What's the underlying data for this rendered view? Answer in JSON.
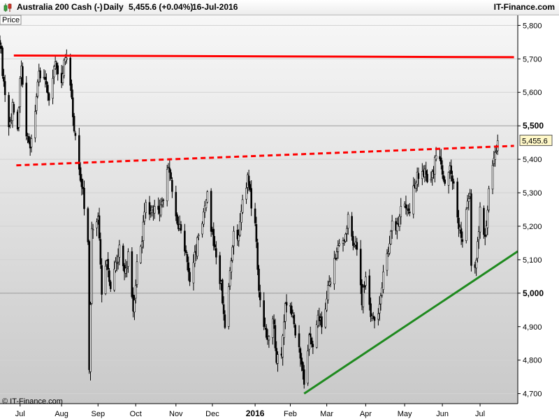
{
  "header": {
    "instrument": "Australia 200 Cash (-)",
    "period": "Daily",
    "price_change": "5,455.6 (+0.04%)",
    "date": "16-Jul-2016",
    "brand": "IT-Finance.com"
  },
  "chart_labels": {
    "price_tag": "Price",
    "last_price": "5,455.6",
    "copyright": "© IT-Finance.com"
  },
  "colors": {
    "up_icon": "#3aa640",
    "down_icon": "#d43a2a",
    "resistance": "#ff0000",
    "support": "#1f8a1f",
    "candles": "#000000",
    "last_price_box": "#fff8c8"
  },
  "chart_data": {
    "type": "candlestick",
    "title": "Australia 200 Cash (-)",
    "xlabel": "",
    "ylabel": "",
    "ylim": [
      4670,
      5830
    ],
    "yticks": [
      5800,
      5700,
      5600,
      5500,
      5400,
      5300,
      5200,
      5100,
      5000,
      4900,
      4800,
      4700
    ],
    "ytick_labels": [
      "5,800",
      "5,700",
      "5,600",
      "5,500",
      "5,400",
      "5,300",
      "5,200",
      "5,100",
      "5,000",
      "4,900",
      "4,800",
      "4,700"
    ],
    "major_ticks": [
      5500,
      5000
    ],
    "x_range": [
      "2015-06-15",
      "2016-07-31"
    ],
    "xticks": [
      {
        "date": "2015-07-01",
        "label": "Jul"
      },
      {
        "date": "2015-08-03",
        "label": "Aug"
      },
      {
        "date": "2015-09-01",
        "label": "Sep"
      },
      {
        "date": "2015-10-01",
        "label": "Oct"
      },
      {
        "date": "2015-11-02",
        "label": "Nov"
      },
      {
        "date": "2015-12-01",
        "label": "Dec"
      },
      {
        "date": "2016-01-04",
        "label": "2016"
      },
      {
        "date": "2016-02-01",
        "label": "Feb"
      },
      {
        "date": "2016-03-01",
        "label": "Mar"
      },
      {
        "date": "2016-04-01",
        "label": "Apr"
      },
      {
        "date": "2016-05-02",
        "label": "May"
      },
      {
        "date": "2016-06-01",
        "label": "Jun"
      },
      {
        "date": "2016-07-01",
        "label": "Jul"
      }
    ],
    "last_close": 5455.6,
    "trendlines": [
      {
        "name": "resistance-high",
        "style": "solid",
        "color": "#ff0000",
        "from": {
          "date": "2015-06-26",
          "value": 5710
        },
        "to": {
          "date": "2016-07-28",
          "value": 5705
        }
      },
      {
        "name": "resistance-neckline",
        "style": "dashed",
        "color": "#ff0000",
        "from": {
          "date": "2015-06-28",
          "value": 5382
        },
        "to": {
          "date": "2016-07-28",
          "value": 5440
        }
      },
      {
        "name": "support-uptrend",
        "style": "solid",
        "color": "#1f8a1f",
        "from": {
          "date": "2016-02-12",
          "value": 4700
        },
        "to": {
          "date": "2016-07-31",
          "value": 5125
        }
      }
    ],
    "price_path": [
      [
        "2015-06-15",
        5760
      ],
      [
        "2015-06-18",
        5620
      ],
      [
        "2015-06-22",
        5480
      ],
      [
        "2015-06-25",
        5560
      ],
      [
        "2015-06-29",
        5500
      ],
      [
        "2015-07-02",
        5690
      ],
      [
        "2015-07-06",
        5460
      ],
      [
        "2015-07-09",
        5420
      ],
      [
        "2015-07-13",
        5560
      ],
      [
        "2015-07-16",
        5660
      ],
      [
        "2015-07-21",
        5640
      ],
      [
        "2015-07-24",
        5560
      ],
      [
        "2015-07-28",
        5690
      ],
      [
        "2015-08-03",
        5640
      ],
      [
        "2015-08-06",
        5710
      ],
      [
        "2015-08-10",
        5620
      ],
      [
        "2015-08-13",
        5480
      ],
      [
        "2015-08-17",
        5380
      ],
      [
        "2015-08-20",
        5300
      ],
      [
        "2015-08-24",
        5150
      ],
      [
        "2015-08-25",
        4780
      ],
      [
        "2015-08-27",
        5180
      ],
      [
        "2015-09-01",
        5230
      ],
      [
        "2015-09-04",
        5000
      ],
      [
        "2015-09-08",
        5100
      ],
      [
        "2015-09-11",
        5020
      ],
      [
        "2015-09-15",
        5090
      ],
      [
        "2015-09-18",
        5140
      ],
      [
        "2015-09-22",
        5050
      ],
      [
        "2015-09-25",
        5110
      ],
      [
        "2015-09-29",
        4930
      ],
      [
        "2015-10-02",
        5080
      ],
      [
        "2015-10-06",
        5170
      ],
      [
        "2015-10-09",
        5260
      ],
      [
        "2015-10-13",
        5230
      ],
      [
        "2015-10-16",
        5270
      ],
      [
        "2015-10-20",
        5240
      ],
      [
        "2015-10-23",
        5290
      ],
      [
        "2015-10-27",
        5390
      ],
      [
        "2015-10-30",
        5300
      ],
      [
        "2015-11-03",
        5200
      ],
      [
        "2015-11-06",
        5190
      ],
      [
        "2015-11-10",
        5110
      ],
      [
        "2015-11-13",
        5040
      ],
      [
        "2015-11-17",
        5110
      ],
      [
        "2015-11-20",
        5180
      ],
      [
        "2015-11-24",
        5230
      ],
      [
        "2015-11-27",
        5290
      ],
      [
        "2015-12-01",
        5170
      ],
      [
        "2015-12-04",
        5110
      ],
      [
        "2015-12-08",
        5020
      ],
      [
        "2015-12-11",
        4910
      ],
      [
        "2015-12-15",
        5050
      ],
      [
        "2015-12-18",
        5170
      ],
      [
        "2015-12-22",
        5160
      ],
      [
        "2015-12-24",
        5260
      ],
      [
        "2015-12-29",
        5340
      ],
      [
        "2016-01-04",
        5200
      ],
      [
        "2016-01-07",
        5020
      ],
      [
        "2016-01-11",
        4900
      ],
      [
        "2016-01-14",
        4870
      ],
      [
        "2016-01-18",
        4940
      ],
      [
        "2016-01-21",
        4800
      ],
      [
        "2016-01-25",
        4830
      ],
      [
        "2016-01-28",
        4960
      ],
      [
        "2016-02-01",
        4980
      ],
      [
        "2016-02-04",
        4900
      ],
      [
        "2016-02-08",
        4850
      ],
      [
        "2016-02-11",
        4760
      ],
      [
        "2016-02-12",
        4720
      ],
      [
        "2016-02-16",
        4870
      ],
      [
        "2016-02-19",
        4840
      ],
      [
        "2016-02-23",
        4950
      ],
      [
        "2016-02-26",
        4900
      ],
      [
        "2016-03-01",
        4990
      ],
      [
        "2016-03-04",
        5050
      ],
      [
        "2016-03-08",
        5110
      ],
      [
        "2016-03-11",
        5160
      ],
      [
        "2016-03-15",
        5150
      ],
      [
        "2016-03-18",
        5220
      ],
      [
        "2016-03-22",
        5150
      ],
      [
        "2016-03-24",
        5170
      ],
      [
        "2016-03-29",
        4980
      ],
      [
        "2016-04-01",
        5050
      ],
      [
        "2016-04-05",
        4920
      ],
      [
        "2016-04-08",
        4910
      ],
      [
        "2016-04-12",
        4960
      ],
      [
        "2016-04-15",
        5070
      ],
      [
        "2016-04-19",
        5120
      ],
      [
        "2016-04-22",
        5220
      ],
      [
        "2016-04-26",
        5200
      ],
      [
        "2016-04-29",
        5260
      ],
      [
        "2016-05-03",
        5270
      ],
      [
        "2016-05-06",
        5240
      ],
      [
        "2016-05-10",
        5330
      ],
      [
        "2016-05-13",
        5360
      ],
      [
        "2016-05-17",
        5370
      ],
      [
        "2016-05-20",
        5340
      ],
      [
        "2016-05-24",
        5350
      ],
      [
        "2016-05-27",
        5420
      ],
      [
        "2016-05-31",
        5380
      ],
      [
        "2016-06-03",
        5330
      ],
      [
        "2016-06-07",
        5370
      ],
      [
        "2016-06-10",
        5320
      ],
      [
        "2016-06-14",
        5190
      ],
      [
        "2016-06-17",
        5160
      ],
      [
        "2016-06-20",
        5250
      ],
      [
        "2016-06-23",
        5290
      ],
      [
        "2016-06-24",
        5070
      ],
      [
        "2016-06-28",
        5100
      ],
      [
        "2016-07-01",
        5240
      ],
      [
        "2016-07-05",
        5170
      ],
      [
        "2016-07-08",
        5300
      ],
      [
        "2016-07-11",
        5370
      ],
      [
        "2016-07-14",
        5430
      ],
      [
        "2016-07-15",
        5455.6
      ]
    ]
  }
}
